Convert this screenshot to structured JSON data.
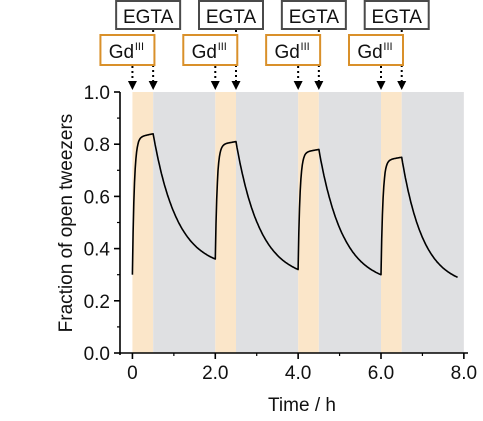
{
  "chart_data": {
    "type": "line",
    "xlabel": "Time / h",
    "ylabel": "Fraction of open tweezers",
    "xlim": [
      -0.3,
      8.1
    ],
    "ylim": [
      0.0,
      1.0
    ],
    "x_ticks": [
      0,
      2.0,
      4.0,
      6.0,
      8.0
    ],
    "x_tick_labels": [
      "0",
      "2.0",
      "4.0",
      "6.0",
      "8.0"
    ],
    "y_ticks": [
      0.0,
      0.2,
      0.4,
      0.6,
      0.8,
      1.0
    ],
    "y_tick_labels": [
      "0.0",
      "0.2",
      "0.4",
      "0.6",
      "0.8",
      "1.0"
    ],
    "grid": false,
    "regions": [
      {
        "x0": 0.0,
        "x1": 0.5,
        "color": "#fbe6c9"
      },
      {
        "x0": 0.5,
        "x1": 2.0,
        "color": "#dfe0e2"
      },
      {
        "x0": 2.0,
        "x1": 2.5,
        "color": "#fbe6c9"
      },
      {
        "x0": 2.5,
        "x1": 4.0,
        "color": "#dfe0e2"
      },
      {
        "x0": 4.0,
        "x1": 4.5,
        "color": "#fbe6c9"
      },
      {
        "x0": 4.5,
        "x1": 6.0,
        "color": "#dfe0e2"
      },
      {
        "x0": 6.0,
        "x1": 6.5,
        "color": "#fbe6c9"
      },
      {
        "x0": 6.5,
        "x1": 8.0,
        "color": "#dfe0e2"
      }
    ],
    "cycles": [
      {
        "start": 0.0,
        "off": 0.5,
        "end": 2.0,
        "y_start": 0.3,
        "y_peak": 0.84,
        "y_end": 0.36
      },
      {
        "start": 2.0,
        "off": 2.5,
        "end": 4.0,
        "y_start": 0.36,
        "y_peak": 0.81,
        "y_end": 0.32
      },
      {
        "start": 4.0,
        "off": 4.5,
        "end": 6.0,
        "y_start": 0.32,
        "y_peak": 0.78,
        "y_end": 0.3
      },
      {
        "start": 6.0,
        "off": 6.5,
        "end": 7.85,
        "y_start": 0.3,
        "y_peak": 0.75,
        "y_end": 0.29
      }
    ],
    "annotations": {
      "gd_label": {
        "base": "Gd",
        "sup": "III"
      },
      "egta_label": "EGTA",
      "gd_times": [
        0.0,
        2.0,
        4.0,
        6.0
      ],
      "egta_times": [
        0.5,
        2.5,
        4.5,
        6.5
      ]
    },
    "colors": {
      "gd_region": "#fbe6c9",
      "egta_region": "#dfe0e2",
      "line": "#000000",
      "gd_box_border": "#d9902a",
      "egta_box_border": "#4a4a4a"
    }
  }
}
